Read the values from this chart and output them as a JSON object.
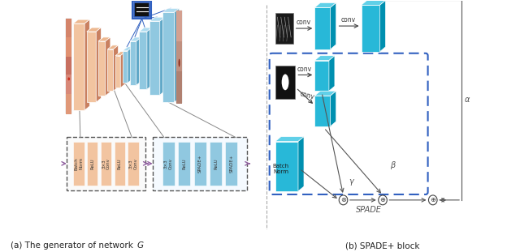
{
  "bg": "#ffffff",
  "salmon_face": "#F2C4A0",
  "salmon_top": "#EDB890",
  "salmon_side": "#C98060",
  "blue_face": "#90C8E0",
  "blue_top": "#B0DCF0",
  "blue_side": "#60A8C8",
  "cyan_face": "#28B8D8",
  "cyan_top": "#60D0E8",
  "cyan_side": "#0090B0",
  "dark_cyan_face": "#1898B8",
  "dark_cyan_side": "#006888",
  "black_img": "#111111",
  "gray_img": "#888888",
  "text_dark": "#222222",
  "arrow_gray": "#666666",
  "purple": "#9060A0",
  "blue_line": "#3060C0",
  "dashed_gray": "#555555",
  "title_a": "(a) The generator of network ",
  "title_a_G": "G",
  "title_b": "(b) SPADE+ block"
}
